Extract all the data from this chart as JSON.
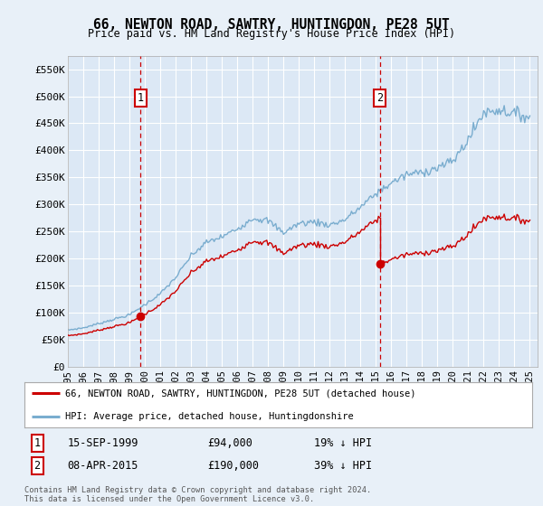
{
  "title": "66, NEWTON ROAD, SAWTRY, HUNTINGDON, PE28 5UT",
  "subtitle": "Price paid vs. HM Land Registry's House Price Index (HPI)",
  "background_color": "#e8f0f8",
  "plot_bg_color": "#dce8f5",
  "grid_color": "#ffffff",
  "sale1_date_num": 1999.71,
  "sale1_label": "1",
  "sale1_price": 94000,
  "sale2_date_num": 2015.27,
  "sale2_label": "2",
  "sale2_price": 190000,
  "red_line_color": "#cc0000",
  "blue_line_color": "#7aadcf",
  "dashed_line_color": "#cc0000",
  "marker_box_color": "#cc0000",
  "xmin": 1995.0,
  "xmax": 2025.5,
  "ymin": 0,
  "ymax": 575000,
  "yticks": [
    0,
    50000,
    100000,
    150000,
    200000,
    250000,
    300000,
    350000,
    400000,
    450000,
    500000,
    550000
  ],
  "ytick_labels": [
    "£0",
    "£50K",
    "£100K",
    "£150K",
    "£200K",
    "£250K",
    "£300K",
    "£350K",
    "£400K",
    "£450K",
    "£500K",
    "£550K"
  ],
  "xticks": [
    1995,
    1996,
    1997,
    1998,
    1999,
    2000,
    2001,
    2002,
    2003,
    2004,
    2005,
    2006,
    2007,
    2008,
    2009,
    2010,
    2011,
    2012,
    2013,
    2014,
    2015,
    2016,
    2017,
    2018,
    2019,
    2020,
    2021,
    2022,
    2023,
    2024,
    2025
  ],
  "legend_red_label": "66, NEWTON ROAD, SAWTRY, HUNTINGDON, PE28 5UT (detached house)",
  "legend_blue_label": "HPI: Average price, detached house, Huntingdonshire",
  "annotation1_date": "15-SEP-1999",
  "annotation1_price": "£94,000",
  "annotation1_hpi": "19% ↓ HPI",
  "annotation2_date": "08-APR-2015",
  "annotation2_price": "£190,000",
  "annotation2_hpi": "39% ↓ HPI",
  "footer": "Contains HM Land Registry data © Crown copyright and database right 2024.\nThis data is licensed under the Open Government Licence v3.0."
}
